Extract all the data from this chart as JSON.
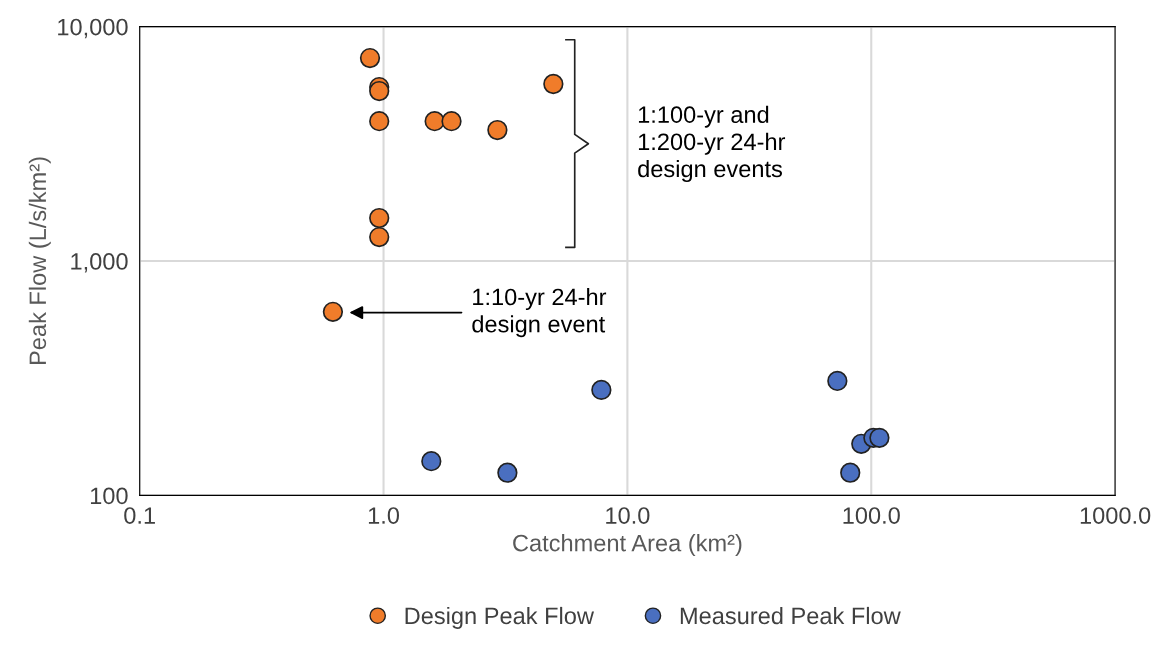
{
  "chart_data": {
    "type": "scatter",
    "xlabel": "Catchment Area (km²)",
    "ylabel": "Peak Flow (L/s/km²)",
    "log": "xy",
    "xlim": [
      0.1,
      1000
    ],
    "ylim": [
      100,
      10000
    ],
    "xticks": [
      {
        "value": 0.1,
        "label": "0.1"
      },
      {
        "value": 1,
        "label": "1.0"
      },
      {
        "value": 10,
        "label": "10.0"
      },
      {
        "value": 100,
        "label": "100.0"
      },
      {
        "value": 1000,
        "label": "1000.0"
      }
    ],
    "yticks": [
      100,
      {
        "value": 1000,
        "label": "1,000"
      },
      {
        "value": 10000,
        "label": "10,000"
      }
    ],
    "grid": true,
    "legend": "bottom",
    "marker": "circle",
    "series": [
      {
        "name": "Design Peak Flow",
        "color": "#f07c2a",
        "x": [
          0.88,
          0.96,
          0.96,
          0.96,
          1.62,
          1.9,
          2.93,
          4.97,
          0.96,
          0.96,
          0.62
        ],
        "values": [
          7340,
          5520,
          5310,
          3950,
          3950,
          3950,
          3620,
          5690,
          1525,
          1265,
          607
        ]
      },
      {
        "name": "Measured Peak Flow",
        "color": "#4a6fc0",
        "x": [
          1.57,
          3.22,
          7.82,
          72.6,
          91,
          102,
          108,
          82
        ],
        "values": [
          140,
          125,
          282,
          308,
          166,
          176,
          176,
          125
        ]
      }
    ],
    "annotations": [
      "1:100-yr and\n1:200-yr 24-hr\ndesign events",
      "1:10-yr 24-hr\ndesign event"
    ]
  }
}
